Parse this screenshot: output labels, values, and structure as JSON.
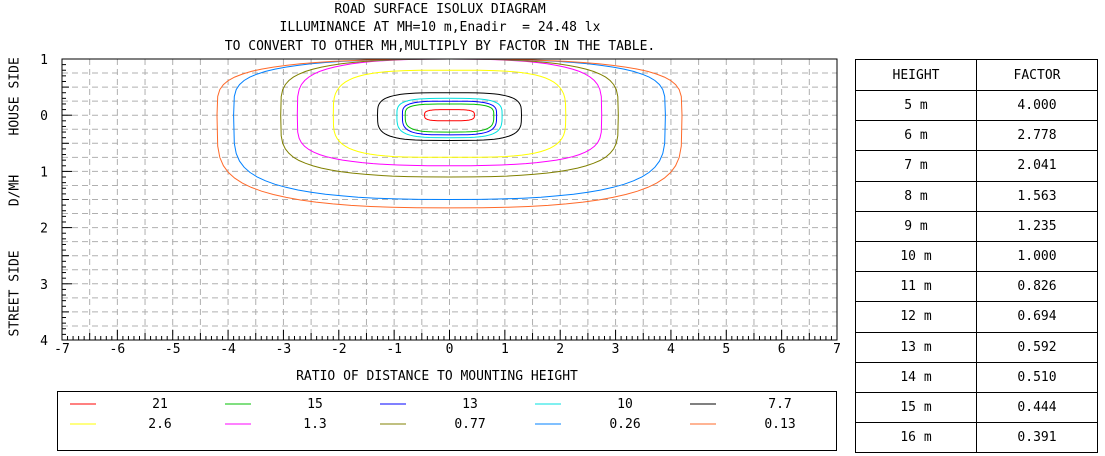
{
  "titles": {
    "line1": "ROAD SURFACE ISOLUX DIAGRAM",
    "line2": "ILLUMINANCE AT MH=10 m,Enadir  = 24.48 lx",
    "line3": "TO CONVERT TO OTHER MH,MULTIPLY BY FACTOR IN THE TABLE."
  },
  "axes": {
    "xlabel": "RATIO OF DISTANCE TO MOUNTING HEIGHT",
    "ylabel_left_street": "STREET SIDE",
    "ylabel_left_dmh": "D/MH",
    "ylabel_left_house": "HOUSE SIDE"
  },
  "factor_table": {
    "header_height": "HEIGHT",
    "header_factor": "FACTOR",
    "rows": [
      {
        "height": "5 m",
        "factor": "4.000"
      },
      {
        "height": "6 m",
        "factor": "2.778"
      },
      {
        "height": "7 m",
        "factor": "2.041"
      },
      {
        "height": "8 m",
        "factor": "1.563"
      },
      {
        "height": "9 m",
        "factor": "1.235"
      },
      {
        "height": "10 m",
        "factor": "1.000"
      },
      {
        "height": "11 m",
        "factor": "0.826"
      },
      {
        "height": "12 m",
        "factor": "0.694"
      },
      {
        "height": "13 m",
        "factor": "0.592"
      },
      {
        "height": "14 m",
        "factor": "0.510"
      },
      {
        "height": "15 m",
        "factor": "0.444"
      },
      {
        "height": "16 m",
        "factor": "0.391"
      }
    ]
  },
  "chart_data": {
    "type": "contour",
    "title": "ROAD SURFACE ISOLUX DIAGRAM",
    "xlabel": "RATIO OF DISTANCE TO MOUNTING HEIGHT",
    "ylabel": "STREET SIDE  D/MH  HOUSE SIDE",
    "xlim": [
      -7,
      7
    ],
    "ylim": [
      -1,
      4
    ],
    "x_ticks": [
      "-7",
      "-6",
      "-5",
      "-4",
      "-3",
      "-2",
      "-1",
      "0",
      "1",
      "2",
      "3",
      "4",
      "5",
      "6",
      "7"
    ],
    "y_ticks": [
      {
        "value": -1,
        "label": "1"
      },
      {
        "value": 0,
        "label": "0"
      },
      {
        "value": 1,
        "label": "1"
      },
      {
        "value": 2,
        "label": "2"
      },
      {
        "value": 3,
        "label": "3"
      },
      {
        "value": 4,
        "label": "4"
      }
    ],
    "grid": true,
    "legend_position": "bottom",
    "series": [
      {
        "name": "21",
        "color": "#ff0000",
        "x_extent": [
          -0.45,
          0.45
        ],
        "y_extent": [
          -0.1,
          0.1
        ]
      },
      {
        "name": "15",
        "color": "#00c000",
        "x_extent": [
          -0.8,
          0.8
        ],
        "y_extent": [
          -0.2,
          0.3
        ]
      },
      {
        "name": "13",
        "color": "#0000ff",
        "x_extent": [
          -0.85,
          0.85
        ],
        "y_extent": [
          -0.25,
          0.35
        ]
      },
      {
        "name": "10",
        "color": "#00e0e0",
        "x_extent": [
          -0.95,
          0.95
        ],
        "y_extent": [
          -0.3,
          0.4
        ]
      },
      {
        "name": "7.7",
        "color": "#000000",
        "x_extent": [
          -1.3,
          1.3
        ],
        "y_extent": [
          -0.4,
          0.45
        ]
      },
      {
        "name": "2.6",
        "color": "#ffff00",
        "x_extent": [
          -2.1,
          2.1
        ],
        "y_extent": [
          -0.8,
          0.75
        ]
      },
      {
        "name": "1.3",
        "color": "#ff00ff",
        "x_extent": [
          -2.75,
          2.75
        ],
        "y_extent": [
          -1.0,
          0.9
        ]
      },
      {
        "name": "0.77",
        "color": "#808000",
        "x_extent": [
          -3.05,
          3.05
        ],
        "y_extent": [
          -1.0,
          1.1
        ]
      },
      {
        "name": "0.26",
        "color": "#0080ff",
        "x_extent": [
          -3.9,
          3.9
        ],
        "y_extent": [
          -1.0,
          1.5
        ]
      },
      {
        "name": "0.13",
        "color": "#ff6a2a",
        "x_extent": [
          -4.2,
          4.2
        ],
        "y_extent": [
          -1.0,
          1.65
        ]
      }
    ]
  }
}
